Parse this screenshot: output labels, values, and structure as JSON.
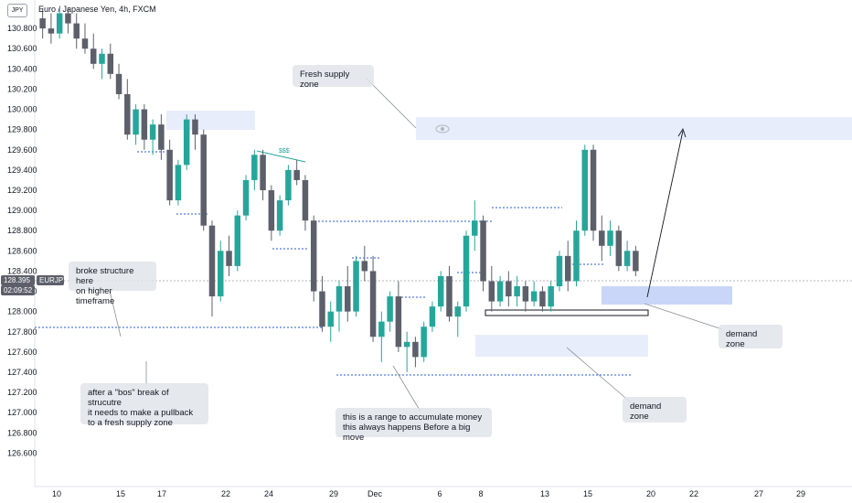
{
  "chart_title": "Euro / Japanese Yen, 4h, FXCM",
  "currency_badge": "JPY",
  "price_axis": [
    "130.800",
    "130.600",
    "130.400",
    "130.200",
    "130.000",
    "129.800",
    "129.600",
    "129.400",
    "129.200",
    "129.000",
    "128.800",
    "128.600",
    "128.400",
    "128.200",
    "128.000",
    "127.800",
    "127.600",
    "127.400",
    "127.200",
    "127.000",
    "126.800",
    "126.600"
  ],
  "time_axis": [
    "10",
    "15",
    "17",
    "22",
    "24",
    "29",
    "Dec",
    "6",
    "8",
    "13",
    "15",
    "20",
    "22",
    "27",
    "29"
  ],
  "current_price": {
    "value": "128.395",
    "countdown": "02:09:52",
    "symbol": "EURJPY"
  },
  "liquidity_mark": "$$$",
  "notes": {
    "fresh_supply": "Fresh supply zone",
    "broke_structure": "broke structure here\non higher timeframe",
    "bos": "after a \"bos\" break of strucutre\nit needs to make a pullback\nto a fresh supply zone",
    "range": "this is a range to accumulate money\nthis always happens Before a big move",
    "demand1": "demand zone",
    "demand2": "demand zone"
  },
  "colors": {
    "up": "#26a69a",
    "down": "#5d606b",
    "supply": "#e8edfb",
    "demand": "#c9d6f7",
    "dotted": "#2a5bd7"
  },
  "chart_data": {
    "type": "candlestick",
    "title": "Euro / Japanese Yen, 4h, FXCM",
    "ylim": [
      126.45,
      131.0
    ],
    "candles": [
      {
        "o": 130.9,
        "h": 131.0,
        "l": 130.7,
        "c": 130.8
      },
      {
        "o": 130.8,
        "h": 130.95,
        "l": 130.65,
        "c": 130.75
      },
      {
        "o": 130.75,
        "h": 131.0,
        "l": 130.7,
        "c": 130.95
      },
      {
        "o": 130.95,
        "h": 131.0,
        "l": 130.75,
        "c": 130.85
      },
      {
        "o": 130.85,
        "h": 130.95,
        "l": 130.6,
        "c": 130.7
      },
      {
        "o": 130.7,
        "h": 130.85,
        "l": 130.55,
        "c": 130.6
      },
      {
        "o": 130.6,
        "h": 130.75,
        "l": 130.4,
        "c": 130.45
      },
      {
        "o": 130.45,
        "h": 130.6,
        "l": 130.3,
        "c": 130.55
      },
      {
        "o": 130.55,
        "h": 130.65,
        "l": 130.3,
        "c": 130.35
      },
      {
        "o": 130.35,
        "h": 130.45,
        "l": 130.1,
        "c": 130.15
      },
      {
        "o": 130.15,
        "h": 130.3,
        "l": 129.7,
        "c": 129.75
      },
      {
        "o": 129.75,
        "h": 130.05,
        "l": 129.65,
        "c": 130.0
      },
      {
        "o": 130.0,
        "h": 130.05,
        "l": 129.6,
        "c": 129.7
      },
      {
        "o": 129.7,
        "h": 129.9,
        "l": 129.55,
        "c": 129.85
      },
      {
        "o": 129.85,
        "h": 129.95,
        "l": 129.5,
        "c": 129.6
      },
      {
        "o": 129.6,
        "h": 129.7,
        "l": 129.05,
        "c": 129.1
      },
      {
        "o": 129.1,
        "h": 129.5,
        "l": 129.05,
        "c": 129.45
      },
      {
        "o": 129.45,
        "h": 129.95,
        "l": 129.4,
        "c": 129.9
      },
      {
        "o": 129.9,
        "h": 129.95,
        "l": 129.6,
        "c": 129.75
      },
      {
        "o": 129.75,
        "h": 129.8,
        "l": 128.8,
        "c": 128.85
      },
      {
        "o": 128.85,
        "h": 128.9,
        "l": 127.95,
        "c": 128.15
      },
      {
        "o": 128.15,
        "h": 128.7,
        "l": 128.1,
        "c": 128.6
      },
      {
        "o": 128.6,
        "h": 128.75,
        "l": 128.35,
        "c": 128.45
      },
      {
        "o": 128.45,
        "h": 129.0,
        "l": 128.4,
        "c": 128.95
      },
      {
        "o": 128.95,
        "h": 129.35,
        "l": 128.9,
        "c": 129.3
      },
      {
        "o": 129.3,
        "h": 129.6,
        "l": 129.2,
        "c": 129.55
      },
      {
        "o": 129.55,
        "h": 129.6,
        "l": 129.1,
        "c": 129.2
      },
      {
        "o": 129.2,
        "h": 129.25,
        "l": 128.7,
        "c": 128.8
      },
      {
        "o": 128.8,
        "h": 129.15,
        "l": 128.75,
        "c": 129.1
      },
      {
        "o": 129.1,
        "h": 129.45,
        "l": 129.05,
        "c": 129.4
      },
      {
        "o": 129.4,
        "h": 129.5,
        "l": 129.25,
        "c": 129.3
      },
      {
        "o": 129.3,
        "h": 129.35,
        "l": 128.8,
        "c": 128.9
      },
      {
        "o": 128.9,
        "h": 128.95,
        "l": 128.1,
        "c": 128.2
      },
      {
        "o": 128.2,
        "h": 128.35,
        "l": 127.8,
        "c": 127.85
      },
      {
        "o": 127.85,
        "h": 128.1,
        "l": 127.7,
        "c": 128.0
      },
      {
        "o": 128.0,
        "h": 128.3,
        "l": 127.8,
        "c": 128.25
      },
      {
        "o": 128.25,
        "h": 128.45,
        "l": 127.9,
        "c": 128.0
      },
      {
        "o": 128.0,
        "h": 128.55,
        "l": 127.95,
        "c": 128.5
      },
      {
        "o": 128.5,
        "h": 128.65,
        "l": 128.3,
        "c": 128.4
      },
      {
        "o": 128.4,
        "h": 128.55,
        "l": 127.7,
        "c": 127.75
      },
      {
        "o": 127.75,
        "h": 128.0,
        "l": 127.5,
        "c": 127.9
      },
      {
        "o": 127.9,
        "h": 128.2,
        "l": 127.8,
        "c": 128.15
      },
      {
        "o": 128.15,
        "h": 128.3,
        "l": 127.6,
        "c": 127.65
      },
      {
        "o": 127.65,
        "h": 127.8,
        "l": 127.4,
        "c": 127.7
      },
      {
        "o": 127.7,
        "h": 127.75,
        "l": 127.45,
        "c": 127.55
      },
      {
        "o": 127.55,
        "h": 127.9,
        "l": 127.5,
        "c": 127.85
      },
      {
        "o": 127.85,
        "h": 128.1,
        "l": 127.8,
        "c": 128.05
      },
      {
        "o": 128.05,
        "h": 128.4,
        "l": 128.0,
        "c": 128.35
      },
      {
        "o": 128.35,
        "h": 128.45,
        "l": 127.9,
        "c": 127.95
      },
      {
        "o": 127.95,
        "h": 128.1,
        "l": 127.75,
        "c": 128.05
      },
      {
        "o": 128.05,
        "h": 128.8,
        "l": 128.0,
        "c": 128.75
      },
      {
        "o": 128.75,
        "h": 129.1,
        "l": 128.6,
        "c": 128.9
      },
      {
        "o": 128.9,
        "h": 128.95,
        "l": 128.2,
        "c": 128.3
      },
      {
        "o": 128.3,
        "h": 128.45,
        "l": 128.0,
        "c": 128.1
      },
      {
        "o": 128.1,
        "h": 128.35,
        "l": 128.05,
        "c": 128.3
      },
      {
        "o": 128.3,
        "h": 128.4,
        "l": 128.05,
        "c": 128.15
      },
      {
        "o": 128.15,
        "h": 128.35,
        "l": 128.05,
        "c": 128.25
      },
      {
        "o": 128.25,
        "h": 128.3,
        "l": 128.0,
        "c": 128.1
      },
      {
        "o": 128.1,
        "h": 128.3,
        "l": 128.05,
        "c": 128.2
      },
      {
        "o": 128.2,
        "h": 128.25,
        "l": 128.0,
        "c": 128.05
      },
      {
        "o": 128.05,
        "h": 128.3,
        "l": 128.0,
        "c": 128.25
      },
      {
        "o": 128.25,
        "h": 128.6,
        "l": 128.2,
        "c": 128.55
      },
      {
        "o": 128.55,
        "h": 128.7,
        "l": 128.2,
        "c": 128.3
      },
      {
        "o": 128.3,
        "h": 128.9,
        "l": 128.25,
        "c": 128.8
      },
      {
        "o": 128.8,
        "h": 129.65,
        "l": 128.75,
        "c": 129.6
      },
      {
        "o": 129.6,
        "h": 129.65,
        "l": 128.7,
        "c": 128.8
      },
      {
        "o": 128.8,
        "h": 128.95,
        "l": 128.5,
        "c": 128.65
      },
      {
        "o": 128.65,
        "h": 128.9,
        "l": 128.55,
        "c": 128.8
      },
      {
        "o": 128.8,
        "h": 128.85,
        "l": 128.4,
        "c": 128.45
      },
      {
        "o": 128.45,
        "h": 128.7,
        "l": 128.4,
        "c": 128.6
      },
      {
        "o": 128.6,
        "h": 128.65,
        "l": 128.35,
        "c": 128.4
      }
    ]
  }
}
